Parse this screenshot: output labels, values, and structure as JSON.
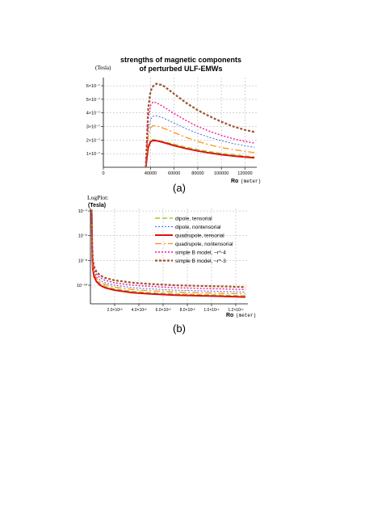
{
  "chart_data": [
    {
      "type": "line",
      "title_line1": "strengths of magnetic components",
      "title_line2": "of perturbed ULF-EMWs",
      "ylabel": "(Tesla)",
      "xlabel_main": "Ro",
      "xlabel_unit": "(meter)",
      "panel_label": "(a)",
      "xlim": [
        0,
        130000
      ],
      "ylim": [
        0,
        6.6e-07
      ],
      "x_ticks": [
        0,
        40000,
        60000,
        80000,
        100000,
        120000
      ],
      "x_tick_labels": [
        "0",
        "40000",
        "60000",
        "80000",
        "100000",
        "120000"
      ],
      "y_ticks": [
        1e-07,
        2e-07,
        3e-07,
        4e-07,
        5e-07,
        6e-07
      ],
      "y_tick_labels": [
        "1×10⁻⁷",
        "2×10⁻⁷",
        "3×10⁻⁷",
        "4×10⁻⁷",
        "5×10⁻⁷",
        "6×10⁻⁷"
      ],
      "grid": true,
      "x": [
        36000,
        37000,
        38000,
        40000,
        42000,
        45000,
        50000,
        60000,
        70000,
        80000,
        90000,
        100000,
        110000,
        120000,
        128000
      ],
      "series": [
        {
          "color": "#9acd32",
          "dash": "6,3",
          "width": 1.4,
          "values": [
            0,
            8e-08,
            1.5e-07,
            1.95e-07,
            2.05e-07,
            2e-07,
            1.9e-07,
            1.68e-07,
            1.48e-07,
            1.3e-07,
            1.15e-07,
            1.02e-07,
            9.2e-08,
            8.3e-08,
            7.7e-08
          ]
        },
        {
          "color": "#4169e1",
          "dash": "2,2",
          "width": 1.0,
          "values": [
            0,
            1.4e-07,
            2.7e-07,
            3.55e-07,
            3.75e-07,
            3.78e-07,
            3.65e-07,
            3.25e-07,
            2.85e-07,
            2.5e-07,
            2.2e-07,
            1.95e-07,
            1.75e-07,
            1.58e-07,
            1.47e-07
          ]
        },
        {
          "color": "#e01010",
          "dash": "",
          "width": 2.0,
          "values": [
            0,
            7.5e-08,
            1.45e-07,
            1.88e-07,
            1.97e-07,
            1.95e-07,
            1.85e-07,
            1.6e-07,
            1.38e-07,
            1.2e-07,
            1.05e-07,
            9.3e-08,
            8.3e-08,
            7.5e-08,
            7e-08
          ]
        },
        {
          "color": "#ff8c00",
          "dash": "8,3,2,3",
          "width": 1.2,
          "values": [
            0,
            1.15e-07,
            2.2e-07,
            2.9e-07,
            3.05e-07,
            3.05e-07,
            2.9e-07,
            2.55e-07,
            2.2e-07,
            1.9e-07,
            1.65e-07,
            1.45e-07,
            1.3e-07,
            1.17e-07,
            1.08e-07
          ]
        },
        {
          "color": "#ff1493",
          "dash": "2,2",
          "width": 1.4,
          "values": [
            0,
            1.8e-07,
            3.6e-07,
            4.55e-07,
            4.8e-07,
            4.75e-07,
            4.5e-07,
            3.95e-07,
            3.45e-07,
            3e-07,
            2.65e-07,
            2.35e-07,
            2.1e-07,
            1.9e-07,
            1.78e-07
          ]
        },
        {
          "color": "#a0522d",
          "dash": "3,2",
          "width": 2.2,
          "values": [
            0,
            2.2e-07,
            4.3e-07,
            5.6e-07,
            5.95e-07,
            6.15e-07,
            6.05e-07,
            5.4e-07,
            4.75e-07,
            4.2e-07,
            3.75e-07,
            3.35e-07,
            3e-07,
            2.75e-07,
            2.6e-07
          ]
        }
      ]
    },
    {
      "type": "line",
      "title": "LogPlot:",
      "ylabel": "(Tesla)",
      "xlabel_main": "Ro",
      "xlabel_unit": "(meter)",
      "panel_label": "(b)",
      "yscale": "log",
      "xlim": [
        0,
        130000000000000
      ],
      "ylim_log10": [
        -11.5,
        -3.8
      ],
      "x_ticks": [
        20000000000000,
        40000000000000,
        60000000000000,
        80000000000000,
        100000000000000,
        120000000000000
      ],
      "x_tick_labels": [
        "2.0×10¹³",
        "4.0×10¹³",
        "6.0×10¹³",
        "8.0×10¹³",
        "1.0×10¹⁴",
        "1.2×10¹⁴"
      ],
      "y_ticks_log10": [
        -4,
        -6,
        -8,
        -10
      ],
      "y_tick_labels": [
        "10⁻⁴",
        "10⁻⁶",
        "10⁻⁸",
        "10⁻¹⁰"
      ],
      "grid": true,
      "legend_position": "top-right",
      "x": [
        1000000000000,
        1500000000000,
        2000000000000,
        3000000000000,
        5000000000000,
        8000000000000,
        12000000000000,
        20000000000000,
        35000000000000,
        50000000000000,
        70000000000000,
        90000000000000,
        110000000000000,
        128000000000000
      ],
      "series": [
        {
          "name": "dipole, tensorial",
          "color": "#9acd32",
          "dash": "6,3",
          "width": 1.4,
          "values_log10": [
            -3.9,
            -7.6,
            -8.6,
            -9.2,
            -9.6,
            -9.9,
            -10.1,
            -10.3,
            -10.5,
            -10.6,
            -10.7,
            -10.75,
            -10.8,
            -10.85
          ]
        },
        {
          "name": "dipole, nontensorial",
          "color": "#4169e1",
          "dash": "2,2",
          "width": 1.0,
          "values_log10": [
            -3.9,
            -7.3,
            -8.3,
            -8.9,
            -9.3,
            -9.6,
            -9.8,
            -10.0,
            -10.2,
            -10.3,
            -10.4,
            -10.45,
            -10.5,
            -10.55
          ]
        },
        {
          "name": "quadrupole, tensorial",
          "color": "#e01010",
          "dash": "",
          "width": 2.0,
          "values_log10": [
            -3.9,
            -7.7,
            -8.7,
            -9.3,
            -9.7,
            -10.0,
            -10.2,
            -10.4,
            -10.6,
            -10.7,
            -10.8,
            -10.85,
            -10.9,
            -10.95
          ]
        },
        {
          "name": "quadrupole, nontensorial",
          "color": "#ff8c00",
          "dash": "8,3,2,3",
          "width": 1.2,
          "values_log10": [
            -3.9,
            -7.45,
            -8.45,
            -9.05,
            -9.45,
            -9.75,
            -9.95,
            -10.15,
            -10.35,
            -10.45,
            -10.55,
            -10.6,
            -10.65,
            -10.7
          ]
        },
        {
          "name": "simple B model, ~r^-4",
          "color": "#ff1493",
          "dash": "2,2",
          "width": 1.4,
          "values_log10": [
            -3.9,
            -7.1,
            -8.1,
            -8.7,
            -9.1,
            -9.4,
            -9.6,
            -9.8,
            -10.0,
            -10.1,
            -10.2,
            -10.25,
            -10.3,
            -10.35
          ]
        },
        {
          "name": "simple B model, ~r^-3",
          "color": "#a0522d",
          "dash": "3,2",
          "width": 2.2,
          "values_log10": [
            -3.9,
            -6.9,
            -7.9,
            -8.5,
            -8.9,
            -9.2,
            -9.4,
            -9.6,
            -9.8,
            -9.9,
            -10.0,
            -10.05,
            -10.1,
            -10.15
          ]
        }
      ]
    }
  ]
}
